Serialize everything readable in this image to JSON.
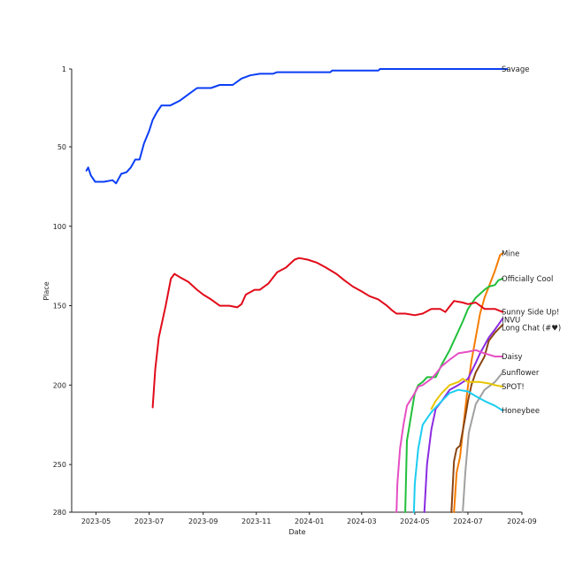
{
  "chart_data": {
    "type": "line",
    "title": "",
    "xlabel": "Date",
    "ylabel": "Place",
    "y_inverted": true,
    "ylim": [
      1,
      280
    ],
    "xlim": [
      "2023-04-03",
      "2024-09-01"
    ],
    "yticks": [
      1,
      50,
      100,
      150,
      200,
      250,
      280
    ],
    "xticks": [
      "2023-05",
      "2023-07",
      "2023-09",
      "2023-11",
      "2024-01",
      "2024-03",
      "2024-05",
      "2024-07",
      "2024-09"
    ],
    "legend": "inline labels at line ends",
    "series": [
      {
        "name": "Savage",
        "color": "#0b3ef5",
        "points": [
          [
            "2023-04-20",
            65
          ],
          [
            "2023-04-22",
            63
          ],
          [
            "2023-04-25",
            68
          ],
          [
            "2023-04-30",
            72
          ],
          [
            "2023-05-10",
            72
          ],
          [
            "2023-05-20",
            71
          ],
          [
            "2023-05-24",
            73
          ],
          [
            "2023-05-30",
            67
          ],
          [
            "2023-06-05",
            66
          ],
          [
            "2023-06-10",
            63
          ],
          [
            "2023-06-15",
            58
          ],
          [
            "2023-06-20",
            58
          ],
          [
            "2023-06-25",
            48
          ],
          [
            "2023-07-01",
            40
          ],
          [
            "2023-07-05",
            33
          ],
          [
            "2023-07-10",
            28
          ],
          [
            "2023-07-15",
            24
          ],
          [
            "2023-07-25",
            24
          ],
          [
            "2023-08-05",
            21
          ],
          [
            "2023-08-15",
            17
          ],
          [
            "2023-08-25",
            13
          ],
          [
            "2023-09-10",
            13
          ],
          [
            "2023-09-20",
            11
          ],
          [
            "2023-10-05",
            11
          ],
          [
            "2023-10-15",
            7
          ],
          [
            "2023-10-25",
            5
          ],
          [
            "2023-11-05",
            4
          ],
          [
            "2023-11-20",
            4
          ],
          [
            "2023-11-25",
            3
          ],
          [
            "2024-01-25",
            3
          ],
          [
            "2024-01-27",
            2
          ],
          [
            "2024-03-20",
            2
          ],
          [
            "2024-03-22",
            1
          ],
          [
            "2024-08-15",
            1
          ]
        ]
      },
      {
        "name": "Mine",
        "color": "#f57c00",
        "points": [
          [
            "2024-06-15",
            280
          ],
          [
            "2024-06-18",
            255
          ],
          [
            "2024-06-22",
            245
          ],
          [
            "2024-06-26",
            225
          ],
          [
            "2024-06-30",
            205
          ],
          [
            "2024-07-05",
            185
          ],
          [
            "2024-07-10",
            170
          ],
          [
            "2024-07-15",
            155
          ],
          [
            "2024-07-20",
            145
          ],
          [
            "2024-07-25",
            138
          ],
          [
            "2024-08-01",
            128
          ],
          [
            "2024-08-07",
            118
          ],
          [
            "2024-08-10",
            117
          ]
        ]
      },
      {
        "name": "Officially Cool",
        "color": "#21c03b",
        "points": [
          [
            "2024-04-20",
            280
          ],
          [
            "2024-04-22",
            235
          ],
          [
            "2024-04-25",
            225
          ],
          [
            "2024-05-01",
            205
          ],
          [
            "2024-05-05",
            200
          ],
          [
            "2024-05-10",
            198
          ],
          [
            "2024-05-15",
            195
          ],
          [
            "2024-05-25",
            195
          ],
          [
            "2024-06-01",
            187
          ],
          [
            "2024-06-10",
            178
          ],
          [
            "2024-06-15",
            172
          ],
          [
            "2024-06-25",
            160
          ],
          [
            "2024-07-01",
            152
          ],
          [
            "2024-07-10",
            145
          ],
          [
            "2024-07-20",
            140
          ],
          [
            "2024-07-25",
            138
          ],
          [
            "2024-08-01",
            137
          ],
          [
            "2024-08-05",
            134
          ],
          [
            "2024-08-10",
            133
          ]
        ]
      },
      {
        "name": "Sunny Side Up!",
        "color": "#e10b1a",
        "points": [
          [
            "2023-07-05",
            214
          ],
          [
            "2023-07-08",
            190
          ],
          [
            "2023-07-12",
            170
          ],
          [
            "2023-07-20",
            150
          ],
          [
            "2023-07-26",
            133
          ],
          [
            "2023-07-30",
            130
          ],
          [
            "2023-08-05",
            132
          ],
          [
            "2023-08-15",
            135
          ],
          [
            "2023-08-25",
            140
          ],
          [
            "2023-09-01",
            143
          ],
          [
            "2023-09-10",
            146
          ],
          [
            "2023-09-20",
            150
          ],
          [
            "2023-10-01",
            150
          ],
          [
            "2023-10-10",
            151
          ],
          [
            "2023-10-15",
            149
          ],
          [
            "2023-10-20",
            143
          ],
          [
            "2023-10-30",
            140
          ],
          [
            "2023-11-05",
            140
          ],
          [
            "2023-11-15",
            136
          ],
          [
            "2023-11-25",
            129
          ],
          [
            "2023-12-05",
            126
          ],
          [
            "2023-12-15",
            121
          ],
          [
            "2023-12-20",
            120
          ],
          [
            "2023-12-30",
            121
          ],
          [
            "2024-01-10",
            123
          ],
          [
            "2024-01-20",
            126
          ],
          [
            "2024-02-01",
            130
          ],
          [
            "2024-02-10",
            134
          ],
          [
            "2024-02-20",
            138
          ],
          [
            "2024-03-01",
            141
          ],
          [
            "2024-03-10",
            144
          ],
          [
            "2024-03-20",
            146
          ],
          [
            "2024-03-30",
            150
          ],
          [
            "2024-04-05",
            153
          ],
          [
            "2024-04-10",
            155
          ],
          [
            "2024-04-20",
            155
          ],
          [
            "2024-05-01",
            156
          ],
          [
            "2024-05-10",
            155
          ],
          [
            "2024-05-20",
            152
          ],
          [
            "2024-05-30",
            152
          ],
          [
            "2024-06-05",
            154
          ],
          [
            "2024-06-15",
            147
          ],
          [
            "2024-06-25",
            148
          ],
          [
            "2024-07-01",
            149
          ],
          [
            "2024-07-10",
            148
          ],
          [
            "2024-07-20",
            152
          ],
          [
            "2024-08-01",
            152
          ],
          [
            "2024-08-10",
            154
          ]
        ]
      },
      {
        "name": "|NVU",
        "color": "#8b2be2",
        "points": [
          [
            "2024-05-12",
            280
          ],
          [
            "2024-05-15",
            250
          ],
          [
            "2024-05-20",
            228
          ],
          [
            "2024-05-25",
            215
          ],
          [
            "2024-06-01",
            210
          ],
          [
            "2024-06-10",
            203
          ],
          [
            "2024-06-20",
            200
          ],
          [
            "2024-07-01",
            196
          ],
          [
            "2024-07-10",
            186
          ],
          [
            "2024-07-15",
            180
          ],
          [
            "2024-07-25",
            170
          ],
          [
            "2024-08-01",
            165
          ],
          [
            "2024-08-05",
            162
          ],
          [
            "2024-08-10",
            158
          ]
        ]
      },
      {
        "name": "Long Chat (#♥)",
        "color": "#8b4513",
        "points": [
          [
            "2024-06-12",
            280
          ],
          [
            "2024-06-15",
            248
          ],
          [
            "2024-06-18",
            240
          ],
          [
            "2024-06-22",
            238
          ],
          [
            "2024-06-28",
            220
          ],
          [
            "2024-07-01",
            210
          ],
          [
            "2024-07-05",
            200
          ],
          [
            "2024-07-10",
            192
          ],
          [
            "2024-07-20",
            182
          ],
          [
            "2024-07-25",
            172
          ],
          [
            "2024-08-01",
            167
          ],
          [
            "2024-08-10",
            162
          ]
        ]
      },
      {
        "name": "Daisy",
        "color": "#e64fc4",
        "points": [
          [
            "2024-04-10",
            280
          ],
          [
            "2024-04-11",
            262
          ],
          [
            "2024-04-14",
            240
          ],
          [
            "2024-04-18",
            225
          ],
          [
            "2024-04-22",
            213
          ],
          [
            "2024-05-01",
            205
          ],
          [
            "2024-05-05",
            201
          ],
          [
            "2024-05-10",
            200
          ],
          [
            "2024-05-20",
            196
          ],
          [
            "2024-05-25",
            193
          ],
          [
            "2024-06-01",
            188
          ],
          [
            "2024-06-10",
            184
          ],
          [
            "2024-06-20",
            180
          ],
          [
            "2024-07-01",
            179
          ],
          [
            "2024-07-10",
            178
          ],
          [
            "2024-07-20",
            180
          ],
          [
            "2024-08-01",
            182
          ],
          [
            "2024-08-10",
            182
          ]
        ]
      },
      {
        "name": "Sunflower",
        "color": "#a0a0a0",
        "points": [
          [
            "2024-06-25",
            280
          ],
          [
            "2024-06-28",
            255
          ],
          [
            "2024-07-02",
            230
          ],
          [
            "2024-07-10",
            212
          ],
          [
            "2024-07-20",
            203
          ],
          [
            "2024-08-01",
            198
          ],
          [
            "2024-08-10",
            192
          ]
        ]
      },
      {
        "name": "SPOT!",
        "color": "#e8c400",
        "points": [
          [
            "2024-05-20",
            215
          ],
          [
            "2024-05-25",
            210
          ],
          [
            "2024-06-01",
            205
          ],
          [
            "2024-06-10",
            200
          ],
          [
            "2024-06-20",
            198
          ],
          [
            "2024-06-25",
            196
          ],
          [
            "2024-07-01",
            198
          ],
          [
            "2024-07-15",
            198
          ],
          [
            "2024-07-25",
            199
          ],
          [
            "2024-08-01",
            200
          ],
          [
            "2024-08-10",
            201
          ]
        ]
      },
      {
        "name": "Honeybee",
        "color": "#1ccdf0",
        "points": [
          [
            "2024-04-30",
            280
          ],
          [
            "2024-05-01",
            262
          ],
          [
            "2024-05-05",
            240
          ],
          [
            "2024-05-10",
            225
          ],
          [
            "2024-05-20",
            217
          ],
          [
            "2024-06-01",
            210
          ],
          [
            "2024-06-10",
            205
          ],
          [
            "2024-06-20",
            203
          ],
          [
            "2024-07-01",
            204
          ],
          [
            "2024-07-10",
            207
          ],
          [
            "2024-07-20",
            210
          ],
          [
            "2024-08-01",
            213
          ],
          [
            "2024-08-10",
            216
          ]
        ]
      }
    ]
  }
}
